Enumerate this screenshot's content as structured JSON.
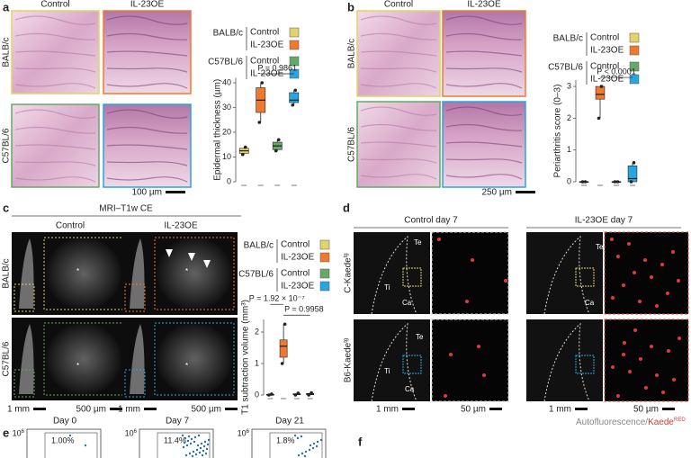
{
  "panels": [
    "a",
    "b",
    "c",
    "d",
    "e",
    "f"
  ],
  "a": {
    "columns": [
      "Control",
      "IL-23OE"
    ],
    "rows": [
      "BALB/c",
      "C57BL/6"
    ],
    "scale": "100 µm"
  },
  "b": {
    "columns": [
      "Control",
      "IL-23OE"
    ],
    "rows": [
      "BALB/c",
      "C57BL/6"
    ],
    "scale": "250 µm"
  },
  "c": {
    "title": "MRI–T1w CE",
    "columns": [
      "Control",
      "IL-23OE"
    ],
    "rows": [
      "BALB/c",
      "C57BL/6"
    ],
    "scales": [
      "1 mm",
      "500 µm",
      "1 mm",
      "500 µm"
    ],
    "marker": "*"
  },
  "d": {
    "columns": [
      "Control day 7",
      "IL-23OE day 7"
    ],
    "rows": [
      {
        "text": "C-Kaede",
        "sup": "tg"
      },
      {
        "text": "B6-Kaede",
        "sup": "tg"
      }
    ],
    "scales": [
      "1 mm",
      "50 µm",
      "1 mm",
      "50 µm"
    ],
    "annotations": [
      "Te",
      "Ti",
      "Ca",
      "Te",
      "Ti",
      "Ca",
      "Te",
      "Ca"
    ],
    "caption": {
      "a": "Autofluorescence",
      "b": "/",
      "c": "Kaede",
      "sup": "RED"
    }
  },
  "e": {
    "plots": [
      {
        "title": "Day 0",
        "percent": "1.00%"
      },
      {
        "title": "Day 7",
        "percent": "11.4%"
      },
      {
        "title": "Day 21",
        "percent": "1.8%"
      }
    ],
    "tick": {
      "base": "10",
      "sup": "6"
    }
  },
  "legend": {
    "groups": [
      {
        "name": "BALB/c",
        "items": [
          "Control",
          "IL-23OE"
        ]
      },
      {
        "name": "C57BL/6",
        "items": [
          "Control",
          "IL-23OE"
        ]
      }
    ],
    "colors": [
      "#e2d468",
      "#ee7a2f",
      "#66a866",
      "#27a6df"
    ]
  },
  "chart_data": [
    {
      "type": "box",
      "ylabel": "Epidermal thickness (µm)",
      "ylim": [
        0,
        42
      ],
      "yticks": [
        0,
        10,
        20,
        30,
        40
      ],
      "boxes": [
        {
          "min": 11,
          "q1": 11.5,
          "median": 12.5,
          "q3": 13.5,
          "max": 14
        },
        {
          "min": 24,
          "q1": 28,
          "median": 33,
          "q3": 38,
          "max": 40
        },
        {
          "min": 12.5,
          "q1": 13,
          "median": 14.5,
          "q3": 16,
          "max": 17
        },
        {
          "min": 31,
          "q1": 32,
          "median": 33,
          "q3": 36,
          "max": 37
        }
      ],
      "annotations": [
        "P = 0.9861"
      ]
    },
    {
      "type": "box",
      "ylabel": "Periarthritis score (0–3)",
      "ylim": [
        0,
        3.2
      ],
      "yticks": [
        0,
        1,
        2,
        3
      ],
      "boxes": [
        {
          "min": 0,
          "q1": 0,
          "median": 0,
          "q3": 0,
          "max": 0
        },
        {
          "min": 2,
          "q1": 2.6,
          "median": 2.75,
          "q3": 3,
          "max": 3
        },
        {
          "min": 0,
          "q1": 0,
          "median": 0,
          "q3": 0,
          "max": 0
        },
        {
          "min": 0,
          "q1": 0,
          "median": 0.1,
          "q3": 0.5,
          "max": 0.6
        }
      ],
      "annotations": [
        "P < 0.0001"
      ]
    },
    {
      "type": "box",
      "ylabel": "T1 subtraction volume (mm³)",
      "ylim": [
        0,
        2.4
      ],
      "yticks": [
        0,
        1,
        2
      ],
      "boxes": [
        {
          "min": 0,
          "q1": 0,
          "median": 0,
          "q3": 0.02,
          "max": 0.03
        },
        {
          "min": 1,
          "q1": 1.2,
          "median": 1.55,
          "q3": 1.75,
          "max": 2.25
        },
        {
          "min": 0,
          "q1": 0.01,
          "median": 0.02,
          "q3": 0.04,
          "max": 0.06
        },
        {
          "min": 0,
          "q1": 0.01,
          "median": 0.03,
          "q3": 0.05,
          "max": 0.07
        }
      ],
      "annotations": [
        "P = 1.92 × 10⁻⁷",
        "P = 0.9958"
      ]
    }
  ]
}
